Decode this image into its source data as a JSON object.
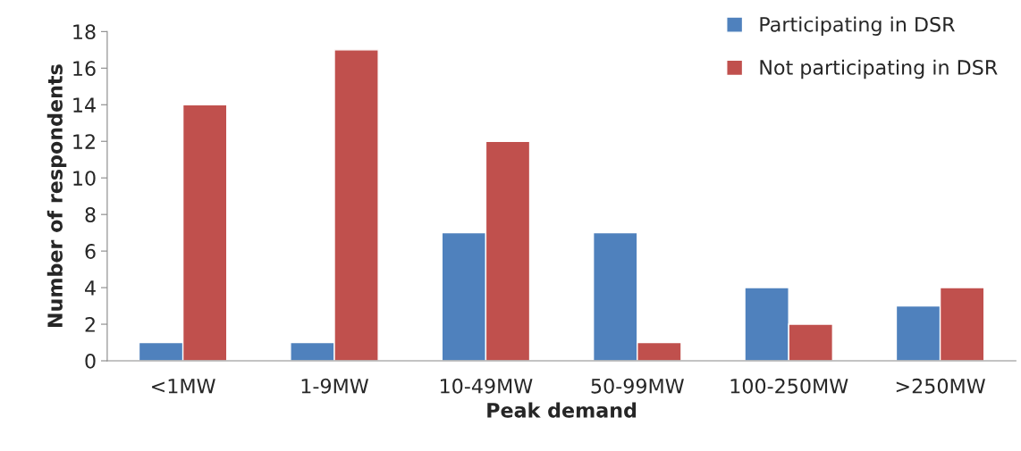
{
  "chart_data": {
    "type": "bar",
    "xlabel": "Peak demand",
    "ylabel": "Number of respondents",
    "categories": [
      "<1MW",
      "1-9MW",
      "10-49MW",
      "50-99MW",
      "100-250MW",
      ">250MW"
    ],
    "series": [
      {
        "name": "Participating in DSR",
        "color": "#4f81bd",
        "values": [
          1,
          1,
          7,
          7,
          4,
          3
        ]
      },
      {
        "name": "Not participating in DSR",
        "color": "#c0504d",
        "values": [
          14,
          17,
          12,
          1,
          2,
          4
        ]
      }
    ],
    "ylim": [
      0,
      18
    ],
    "yticks": [
      0,
      2,
      4,
      6,
      8,
      10,
      12,
      14,
      16,
      18
    ],
    "grid": false,
    "legend": "top right"
  }
}
